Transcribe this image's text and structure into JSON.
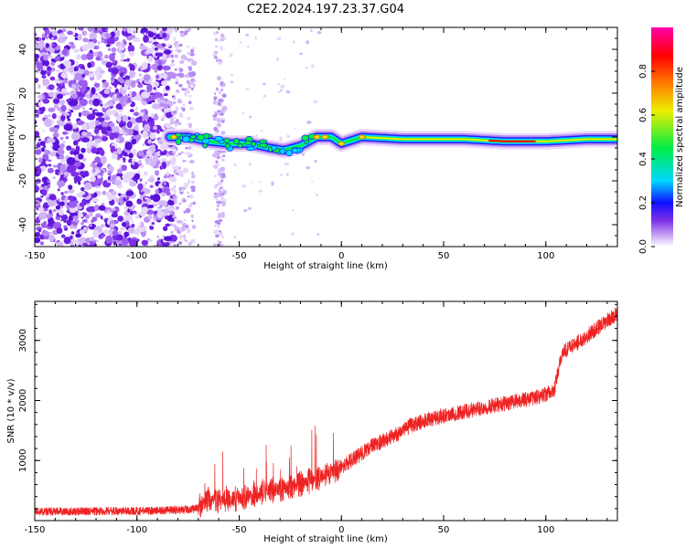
{
  "title": "C2E2.2024.197.23.37.G04",
  "colors": {
    "snr_line": "#ee2222",
    "cmap": [
      "#ffffff",
      "#c9a6f5",
      "#7c2ee8",
      "#1010ff",
      "#00d8ff",
      "#00ee44",
      "#eeee00",
      "#ff7700",
      "#ff0000",
      "#ff00aa"
    ]
  },
  "chart_data": [
    {
      "type": "heatmap",
      "title": "C2E2.2024.197.23.37.G04",
      "xlabel": "Height of straight line (km)",
      "ylabel": "Frequency (Hz)",
      "xlim": [
        -150,
        135
      ],
      "ylim": [
        -50,
        50
      ],
      "xticks": [
        -150,
        -100,
        -50,
        0,
        50,
        100
      ],
      "yticks": [
        -40,
        -20,
        0,
        20,
        40
      ],
      "colorbar": {
        "label": "Normalized spectral amplitude",
        "range": [
          0,
          1
        ],
        "ticks": [
          0.0,
          0.2,
          0.4,
          0.6,
          0.8
        ]
      },
      "ridge": [
        {
          "x": -84,
          "y": 0
        },
        {
          "x": -75,
          "y": 0
        },
        {
          "x": -65,
          "y": -2
        },
        {
          "x": -55,
          "y": -3
        },
        {
          "x": -45,
          "y": -3
        },
        {
          "x": -35,
          "y": -5
        },
        {
          "x": -28,
          "y": -6
        },
        {
          "x": -20,
          "y": -4
        },
        {
          "x": -12,
          "y": 0
        },
        {
          "x": -5,
          "y": 0
        },
        {
          "x": 0,
          "y": -3
        },
        {
          "x": 10,
          "y": 0
        },
        {
          "x": 30,
          "y": -1
        },
        {
          "x": 60,
          "y": -1
        },
        {
          "x": 80,
          "y": -2
        },
        {
          "x": 100,
          "y": -2
        },
        {
          "x": 120,
          "y": -1
        },
        {
          "x": 135,
          "y": -1
        }
      ]
    },
    {
      "type": "line",
      "xlabel": "Height of straight line (km)",
      "ylabel": "SNR (10 * v/v)",
      "xlim": [
        -150,
        135
      ],
      "ylim": [
        0,
        3650
      ],
      "xticks": [
        -150,
        -100,
        -50,
        0,
        50,
        100
      ],
      "yticks": [
        1000,
        2000,
        3000
      ],
      "trend": [
        {
          "x": -150,
          "y": 150
        },
        {
          "x": -100,
          "y": 160
        },
        {
          "x": -75,
          "y": 180
        },
        {
          "x": -70,
          "y": 220
        },
        {
          "x": -65,
          "y": 350
        },
        {
          "x": -55,
          "y": 330
        },
        {
          "x": -45,
          "y": 420
        },
        {
          "x": -35,
          "y": 500
        },
        {
          "x": -25,
          "y": 560
        },
        {
          "x": -15,
          "y": 650
        },
        {
          "x": -5,
          "y": 800
        },
        {
          "x": 5,
          "y": 1000
        },
        {
          "x": 15,
          "y": 1250
        },
        {
          "x": 25,
          "y": 1400
        },
        {
          "x": 35,
          "y": 1600
        },
        {
          "x": 50,
          "y": 1750
        },
        {
          "x": 65,
          "y": 1850
        },
        {
          "x": 80,
          "y": 1950
        },
        {
          "x": 95,
          "y": 2050
        },
        {
          "x": 104,
          "y": 2150
        },
        {
          "x": 108,
          "y": 2800
        },
        {
          "x": 115,
          "y": 2950
        },
        {
          "x": 125,
          "y": 3200
        },
        {
          "x": 135,
          "y": 3450
        }
      ]
    }
  ]
}
